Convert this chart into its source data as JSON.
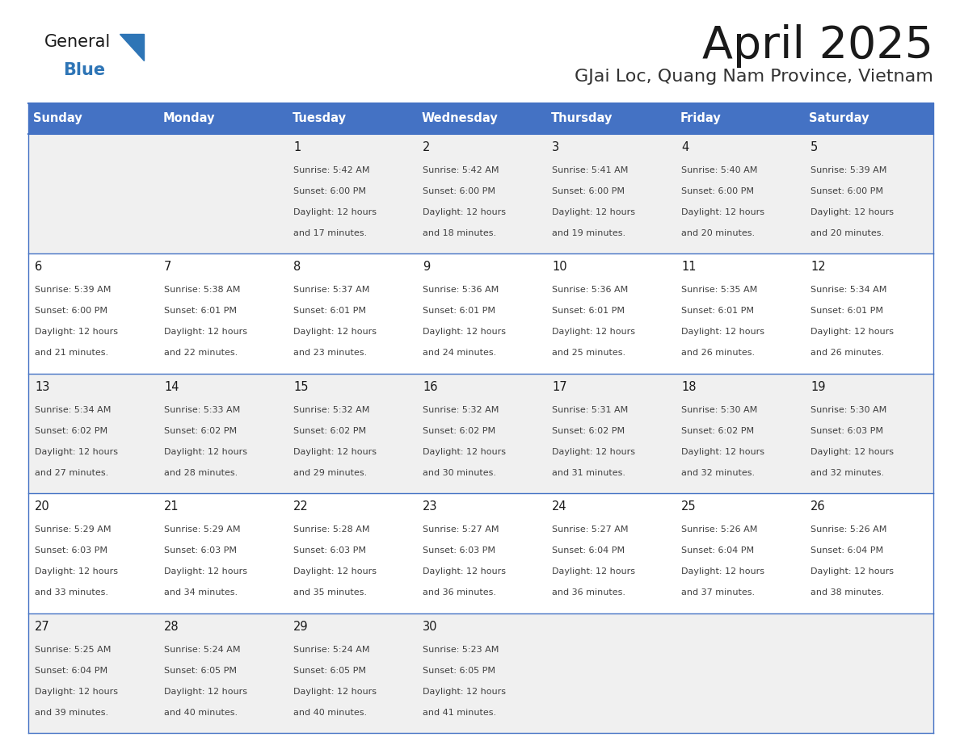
{
  "title": "April 2025",
  "subtitle": "GJai Loc, Quang Nam Province, Vietnam",
  "days_of_week": [
    "Sunday",
    "Monday",
    "Tuesday",
    "Wednesday",
    "Thursday",
    "Friday",
    "Saturday"
  ],
  "header_bg": "#4472C4",
  "header_text": "#FFFFFF",
  "cell_bg_even": "#F0F0F0",
  "cell_bg_odd": "#FFFFFF",
  "cell_border": "#4472C4",
  "row_line_color": "#4472C4",
  "title_color": "#1a1a1a",
  "subtitle_color": "#333333",
  "day_num_color": "#1a1a1a",
  "cell_text_color": "#404040",
  "logo_general_color": "#1a1a1a",
  "logo_blue_color": "#2E75B6",
  "calendar_data": [
    {
      "day": 1,
      "col": 2,
      "row": 0,
      "sunrise": "5:42 AM",
      "sunset": "6:00 PM",
      "daylight": "12 hours and 17 minutes"
    },
    {
      "day": 2,
      "col": 3,
      "row": 0,
      "sunrise": "5:42 AM",
      "sunset": "6:00 PM",
      "daylight": "12 hours and 18 minutes"
    },
    {
      "day": 3,
      "col": 4,
      "row": 0,
      "sunrise": "5:41 AM",
      "sunset": "6:00 PM",
      "daylight": "12 hours and 19 minutes"
    },
    {
      "day": 4,
      "col": 5,
      "row": 0,
      "sunrise": "5:40 AM",
      "sunset": "6:00 PM",
      "daylight": "12 hours and 20 minutes"
    },
    {
      "day": 5,
      "col": 6,
      "row": 0,
      "sunrise": "5:39 AM",
      "sunset": "6:00 PM",
      "daylight": "12 hours and 20 minutes"
    },
    {
      "day": 6,
      "col": 0,
      "row": 1,
      "sunrise": "5:39 AM",
      "sunset": "6:00 PM",
      "daylight": "12 hours and 21 minutes"
    },
    {
      "day": 7,
      "col": 1,
      "row": 1,
      "sunrise": "5:38 AM",
      "sunset": "6:01 PM",
      "daylight": "12 hours and 22 minutes"
    },
    {
      "day": 8,
      "col": 2,
      "row": 1,
      "sunrise": "5:37 AM",
      "sunset": "6:01 PM",
      "daylight": "12 hours and 23 minutes"
    },
    {
      "day": 9,
      "col": 3,
      "row": 1,
      "sunrise": "5:36 AM",
      "sunset": "6:01 PM",
      "daylight": "12 hours and 24 minutes"
    },
    {
      "day": 10,
      "col": 4,
      "row": 1,
      "sunrise": "5:36 AM",
      "sunset": "6:01 PM",
      "daylight": "12 hours and 25 minutes"
    },
    {
      "day": 11,
      "col": 5,
      "row": 1,
      "sunrise": "5:35 AM",
      "sunset": "6:01 PM",
      "daylight": "12 hours and 26 minutes"
    },
    {
      "day": 12,
      "col": 6,
      "row": 1,
      "sunrise": "5:34 AM",
      "sunset": "6:01 PM",
      "daylight": "12 hours and 26 minutes"
    },
    {
      "day": 13,
      "col": 0,
      "row": 2,
      "sunrise": "5:34 AM",
      "sunset": "6:02 PM",
      "daylight": "12 hours and 27 minutes"
    },
    {
      "day": 14,
      "col": 1,
      "row": 2,
      "sunrise": "5:33 AM",
      "sunset": "6:02 PM",
      "daylight": "12 hours and 28 minutes"
    },
    {
      "day": 15,
      "col": 2,
      "row": 2,
      "sunrise": "5:32 AM",
      "sunset": "6:02 PM",
      "daylight": "12 hours and 29 minutes"
    },
    {
      "day": 16,
      "col": 3,
      "row": 2,
      "sunrise": "5:32 AM",
      "sunset": "6:02 PM",
      "daylight": "12 hours and 30 minutes"
    },
    {
      "day": 17,
      "col": 4,
      "row": 2,
      "sunrise": "5:31 AM",
      "sunset": "6:02 PM",
      "daylight": "12 hours and 31 minutes"
    },
    {
      "day": 18,
      "col": 5,
      "row": 2,
      "sunrise": "5:30 AM",
      "sunset": "6:02 PM",
      "daylight": "12 hours and 32 minutes"
    },
    {
      "day": 19,
      "col": 6,
      "row": 2,
      "sunrise": "5:30 AM",
      "sunset": "6:03 PM",
      "daylight": "12 hours and 32 minutes"
    },
    {
      "day": 20,
      "col": 0,
      "row": 3,
      "sunrise": "5:29 AM",
      "sunset": "6:03 PM",
      "daylight": "12 hours and 33 minutes"
    },
    {
      "day": 21,
      "col": 1,
      "row": 3,
      "sunrise": "5:29 AM",
      "sunset": "6:03 PM",
      "daylight": "12 hours and 34 minutes"
    },
    {
      "day": 22,
      "col": 2,
      "row": 3,
      "sunrise": "5:28 AM",
      "sunset": "6:03 PM",
      "daylight": "12 hours and 35 minutes"
    },
    {
      "day": 23,
      "col": 3,
      "row": 3,
      "sunrise": "5:27 AM",
      "sunset": "6:03 PM",
      "daylight": "12 hours and 36 minutes"
    },
    {
      "day": 24,
      "col": 4,
      "row": 3,
      "sunrise": "5:27 AM",
      "sunset": "6:04 PM",
      "daylight": "12 hours and 36 minutes"
    },
    {
      "day": 25,
      "col": 5,
      "row": 3,
      "sunrise": "5:26 AM",
      "sunset": "6:04 PM",
      "daylight": "12 hours and 37 minutes"
    },
    {
      "day": 26,
      "col": 6,
      "row": 3,
      "sunrise": "5:26 AM",
      "sunset": "6:04 PM",
      "daylight": "12 hours and 38 minutes"
    },
    {
      "day": 27,
      "col": 0,
      "row": 4,
      "sunrise": "5:25 AM",
      "sunset": "6:04 PM",
      "daylight": "12 hours and 39 minutes"
    },
    {
      "day": 28,
      "col": 1,
      "row": 4,
      "sunrise": "5:24 AM",
      "sunset": "6:05 PM",
      "daylight": "12 hours and 40 minutes"
    },
    {
      "day": 29,
      "col": 2,
      "row": 4,
      "sunrise": "5:24 AM",
      "sunset": "6:05 PM",
      "daylight": "12 hours and 40 minutes"
    },
    {
      "day": 30,
      "col": 3,
      "row": 4,
      "sunrise": "5:23 AM",
      "sunset": "6:05 PM",
      "daylight": "12 hours and 41 minutes"
    }
  ]
}
